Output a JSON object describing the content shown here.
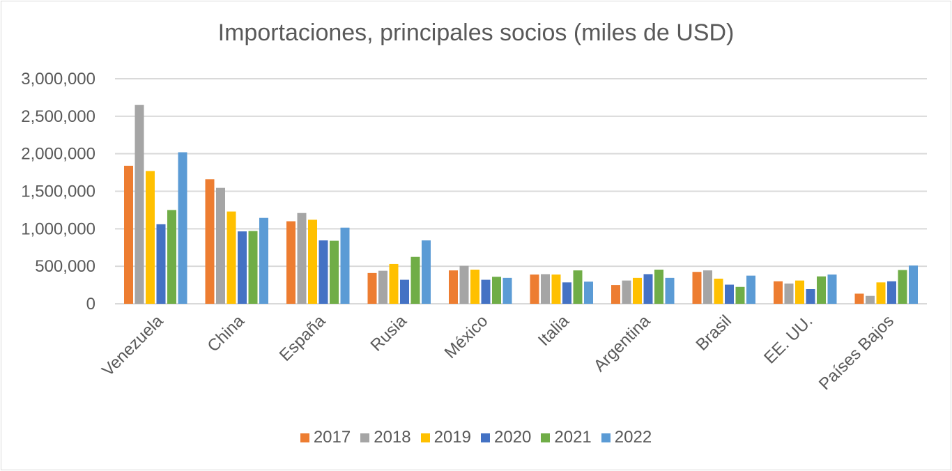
{
  "chart_data": {
    "type": "bar",
    "title": "Importaciones, principales socios (miles de USD)",
    "categories": [
      "Venezuela",
      "China",
      "España",
      "Rusia",
      "México",
      "Italia",
      "Argentina",
      "Brasil",
      "EE. UU.",
      "Países Bajos"
    ],
    "ylim": [
      0,
      3000000
    ],
    "yticks": [
      "0",
      "500,000",
      "1,000,000",
      "1,500,000",
      "2,000,000",
      "2,500,000",
      "3,000,000"
    ],
    "grid": true,
    "legend": "bottom",
    "series": [
      {
        "name": "2017",
        "color": "#ED7D31",
        "values": [
          1840000,
          1660000,
          1100000,
          410000,
          445000,
          390000,
          250000,
          425000,
          300000,
          135000
        ]
      },
      {
        "name": "2018",
        "color": "#A5A5A5",
        "values": [
          2650000,
          1545000,
          1210000,
          440000,
          505000,
          395000,
          310000,
          445000,
          270000,
          105000
        ]
      },
      {
        "name": "2019",
        "color": "#FFC000",
        "values": [
          1770000,
          1230000,
          1120000,
          530000,
          455000,
          390000,
          345000,
          335000,
          310000,
          285000
        ]
      },
      {
        "name": "2020",
        "color": "#4472C4",
        "values": [
          1060000,
          965000,
          845000,
          320000,
          320000,
          285000,
          395000,
          255000,
          195000,
          300000
        ]
      },
      {
        "name": "2021",
        "color": "#70AD47",
        "values": [
          1250000,
          970000,
          840000,
          625000,
          360000,
          445000,
          455000,
          225000,
          365000,
          450000
        ]
      },
      {
        "name": "2022",
        "color": "#5B9BD5",
        "values": [
          2020000,
          1145000,
          1015000,
          845000,
          345000,
          295000,
          345000,
          375000,
          390000,
          510000
        ]
      }
    ]
  }
}
